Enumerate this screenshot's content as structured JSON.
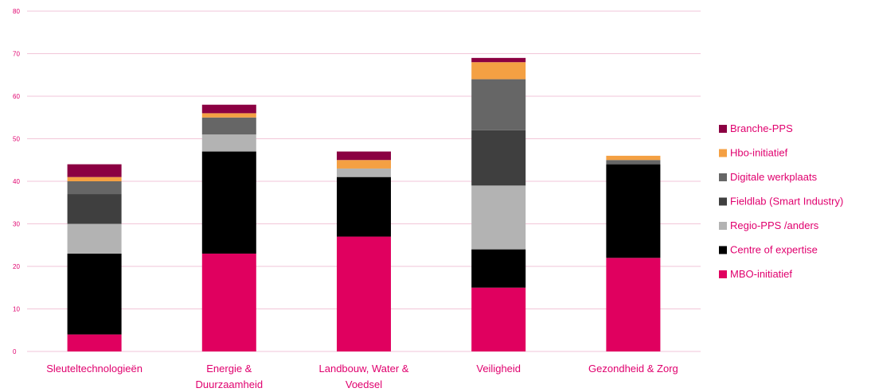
{
  "chart_data": {
    "type": "bar",
    "stacked": true,
    "title": "",
    "xlabel": "",
    "ylabel": "",
    "ylim": [
      0,
      80
    ],
    "yticks": [
      0,
      10,
      20,
      30,
      40,
      50,
      60,
      70,
      80
    ],
    "grid": true,
    "legend_position": "right",
    "categories": [
      [
        "Sleuteltechnologieën"
      ],
      [
        "Energie &",
        "Duurzaamheid"
      ],
      [
        "Landbouw, Water &",
        "Voedsel"
      ],
      [
        "Veiligheid"
      ],
      [
        "Gezondheid & Zorg"
      ]
    ],
    "series": [
      {
        "name": "MBO-initiatief",
        "color": "#e0005f",
        "values": [
          4,
          23,
          27,
          15,
          22
        ]
      },
      {
        "name": "Centre of expertise",
        "color": "#000000",
        "values": [
          19,
          24,
          14,
          9,
          22
        ]
      },
      {
        "name": "Regio-PPS /anders",
        "color": "#b3b3b3",
        "values": [
          7,
          4,
          2,
          15,
          0
        ]
      },
      {
        "name": "Fieldlab (Smart Industry)",
        "color": "#3f3f3f",
        "values": [
          7,
          0,
          0,
          13,
          0
        ]
      },
      {
        "name": "Digitale werkplaats",
        "color": "#666666",
        "values": [
          3,
          4,
          0,
          12,
          1
        ]
      },
      {
        "name": "Hbo-initiatief",
        "color": "#f4a043",
        "values": [
          1,
          1,
          2,
          4,
          1
        ]
      },
      {
        "name": "Branche-PPS",
        "color": "#8b0042",
        "values": [
          3,
          2,
          2,
          1,
          0
        ]
      }
    ],
    "colors": {
      "gridline": "#f2c6d8",
      "axis_text": "#e0006e"
    }
  }
}
